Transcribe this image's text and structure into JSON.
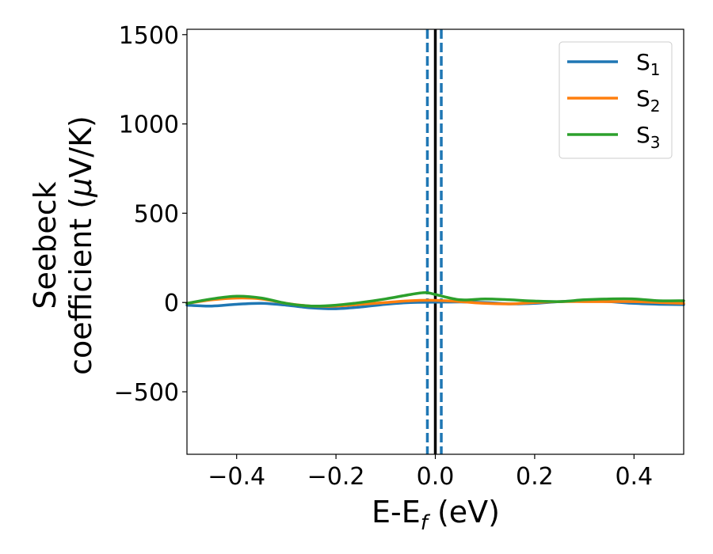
{
  "chart_data": {
    "type": "line",
    "title": "",
    "xlabel": {
      "main": "E-E",
      "sub": "f",
      "tail": " (eV)"
    },
    "ylabel": {
      "line1": "Seebeck",
      "line2_prefix": "coefficient  (",
      "line2_mu": "μ",
      "line2_suffix": "V/K)"
    },
    "xlim": [
      -0.5,
      0.5
    ],
    "ylim": [
      -850,
      1530
    ],
    "xticks": [
      -0.4,
      -0.2,
      0.0,
      0.2,
      0.4
    ],
    "xtick_labels": [
      "−0.4",
      "−0.2",
      "0.0",
      "0.2",
      "0.4"
    ],
    "yticks": [
      -500,
      0,
      500,
      1000,
      1500
    ],
    "ytick_labels": [
      "−500",
      "0",
      "500",
      "1000",
      "1500"
    ],
    "grid": false,
    "legend_position": "top-right",
    "series": [
      {
        "name": "S",
        "sub": "1",
        "color": "#1f77b4",
        "x": [
          -0.5,
          -0.45,
          -0.4,
          -0.35,
          -0.3,
          -0.25,
          -0.2,
          -0.15,
          -0.1,
          -0.05,
          0.0,
          0.05,
          0.1,
          0.15,
          0.2,
          0.25,
          0.3,
          0.35,
          0.4,
          0.45,
          0.5
        ],
        "values": [
          -15,
          -20,
          -10,
          -5,
          -15,
          -30,
          -35,
          -25,
          -10,
          0,
          2,
          3,
          0,
          -8,
          -5,
          5,
          8,
          5,
          -5,
          -10,
          -12
        ]
      },
      {
        "name": "S",
        "sub": "2",
        "color": "#ff7f0e",
        "x": [
          -0.5,
          -0.45,
          -0.4,
          -0.35,
          -0.3,
          -0.25,
          -0.2,
          -0.15,
          -0.1,
          -0.05,
          0.0,
          0.05,
          0.1,
          0.15,
          0.2,
          0.25,
          0.3,
          0.35,
          0.4,
          0.45,
          0.5
        ],
        "values": [
          -5,
          15,
          25,
          20,
          -5,
          -20,
          -20,
          -10,
          0,
          10,
          12,
          5,
          -5,
          -8,
          0,
          5,
          5,
          5,
          5,
          0,
          -5
        ]
      },
      {
        "name": "S",
        "sub": "3",
        "color": "#2ca02c",
        "x": [
          -0.5,
          -0.45,
          -0.4,
          -0.35,
          -0.3,
          -0.25,
          -0.2,
          -0.15,
          -0.1,
          -0.05,
          -0.02,
          0.0,
          0.05,
          0.1,
          0.15,
          0.2,
          0.25,
          0.3,
          0.35,
          0.4,
          0.45,
          0.5
        ],
        "values": [
          -5,
          20,
          35,
          25,
          -5,
          -20,
          -15,
          0,
          20,
          45,
          55,
          45,
          15,
          20,
          15,
          8,
          5,
          15,
          20,
          20,
          10,
          10
        ]
      }
    ],
    "vertical_lines": [
      {
        "x": 0.0,
        "style": "solid",
        "color": "#000000"
      },
      {
        "x": -0.016,
        "style": "dashed",
        "color": "#1f77b4"
      },
      {
        "x": 0.012,
        "style": "dashed",
        "color": "#1f77b4"
      }
    ]
  }
}
